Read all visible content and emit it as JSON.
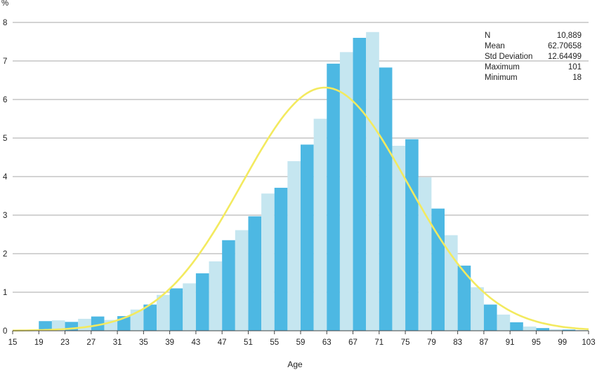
{
  "chart_data": {
    "type": "bar",
    "ylabel": "%",
    "xlabel": "Age",
    "ylim": [
      0,
      8
    ],
    "yticks": [
      "0",
      "1",
      "2",
      "3",
      "4",
      "5",
      "6",
      "7",
      "8"
    ],
    "xticks": [
      "15",
      "19",
      "23",
      "27",
      "31",
      "35",
      "39",
      "43",
      "47",
      "51",
      "55",
      "59",
      "63",
      "67",
      "71",
      "75",
      "79",
      "83",
      "87",
      "91",
      "95",
      "99",
      "103"
    ],
    "grid": true,
    "bin_width": 2,
    "x": [
      15,
      17,
      19,
      21,
      23,
      25,
      27,
      29,
      31,
      33,
      35,
      37,
      39,
      41,
      43,
      45,
      47,
      49,
      51,
      53,
      55,
      57,
      59,
      61,
      63,
      65,
      67,
      69,
      71,
      73,
      75,
      77,
      79,
      81,
      83,
      85,
      87,
      89,
      91,
      93,
      95,
      97,
      99,
      101
    ],
    "values": [
      0.0,
      0.0,
      0.25,
      0.27,
      0.23,
      0.31,
      0.37,
      0.28,
      0.38,
      0.55,
      0.68,
      0.93,
      1.1,
      1.23,
      1.49,
      1.8,
      2.35,
      2.61,
      2.97,
      3.56,
      3.71,
      4.4,
      4.83,
      5.5,
      6.93,
      7.23,
      7.6,
      7.75,
      6.83,
      4.8,
      4.97,
      3.98,
      3.17,
      2.48,
      1.69,
      1.13,
      0.68,
      0.42,
      0.22,
      0.11,
      0.07,
      0.04,
      0.03,
      0.02
    ],
    "bar_colors": [
      "#4db8e3",
      "#c5e6f0"
    ],
    "curve": {
      "type": "normal",
      "mean": 62.70658,
      "sd": 12.64499,
      "color": "#f3ea5f"
    },
    "stats_box": [
      {
        "label": "N",
        "value": "10,889"
      },
      {
        "label": "Mean",
        "value": "62.70658"
      },
      {
        "label": "Std Deviation",
        "value": "12.64499"
      },
      {
        "label": "Maximum",
        "value": "101"
      },
      {
        "label": "Minimum",
        "value": "18"
      }
    ]
  }
}
